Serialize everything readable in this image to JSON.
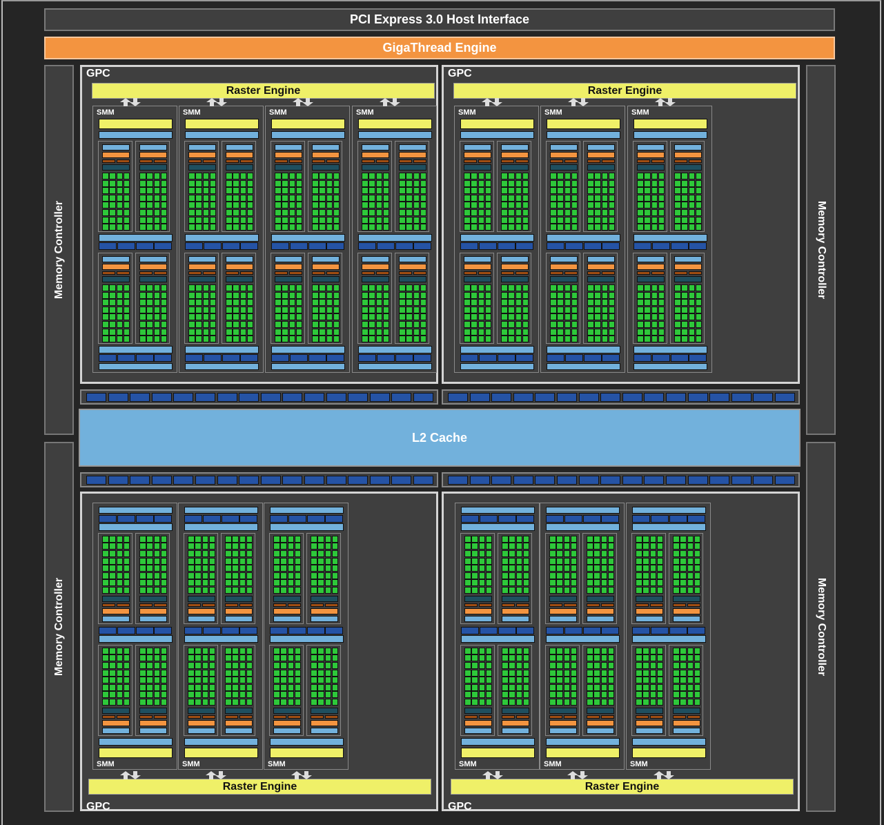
{
  "host_interface": "PCI Express 3.0 Host Interface",
  "scheduler": "GigaThread Engine",
  "l2_cache": "L2 Cache",
  "memory_controller": "Memory Controller",
  "gpc_label": "GPC",
  "raster_label": "Raster Engine",
  "smm_label": "SMM",
  "gpcs": [
    {
      "position": "top-left",
      "smm_count": 4
    },
    {
      "position": "top-right",
      "smm_count": 3
    },
    {
      "position": "bottom-left",
      "smm_count": 3
    },
    {
      "position": "bottom-right",
      "smm_count": 3
    }
  ],
  "memory_bus_blocks_per_row": 16,
  "colors": {
    "polymorph_yellow": "#eff068",
    "light_blue": "#72b1dc",
    "dark_blue": "#2553a5",
    "orange": "#f39440",
    "dark_orange": "#a04d12",
    "teal": "#1f4f5f",
    "core_green": "#2ec83a"
  }
}
